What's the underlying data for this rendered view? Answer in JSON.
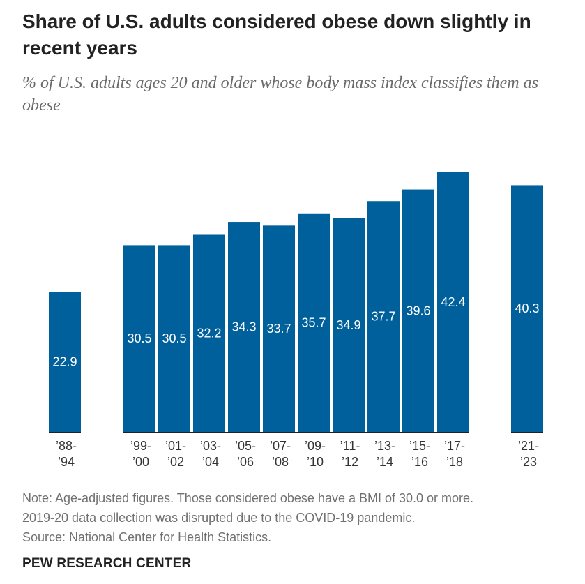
{
  "header": {
    "title": "Share of U.S. adults considered obese down slightly in recent years",
    "subtitle": "% of U.S. adults ages 20 and older whose body mass index classifies them as obese"
  },
  "colors": {
    "bar": "#00609b",
    "bar_label": "#ffffff",
    "axis": "#222222"
  },
  "chart_data": {
    "type": "bar",
    "categories": [
      [
        "’88-",
        "’94"
      ],
      [
        "’99-",
        "’00"
      ],
      [
        "’01-",
        "’02"
      ],
      [
        "’03-",
        "’04"
      ],
      [
        "’05-",
        "’06"
      ],
      [
        "’07-",
        "’08"
      ],
      [
        "’09-",
        "’10"
      ],
      [
        "’11-",
        "’12"
      ],
      [
        "’13-",
        "’14"
      ],
      [
        "’15-",
        "’16"
      ],
      [
        "’17-",
        "’18"
      ],
      [
        "’21-",
        "’23"
      ]
    ],
    "values": [
      22.9,
      30.5,
      30.5,
      32.2,
      34.3,
      33.7,
      35.7,
      34.9,
      37.7,
      39.6,
      42.4,
      40.3
    ],
    "data_labels": [
      "22.9",
      "30.5",
      "30.5",
      "32.2",
      "34.3",
      "33.7",
      "35.7",
      "34.9",
      "37.7",
      "39.6",
      "42.4",
      "40.3"
    ],
    "ylim": [
      0,
      42.4
    ],
    "grid": false,
    "legend": "none"
  },
  "footer": {
    "note_line1": "Note: Age-adjusted figures. Those considered obese have a BMI of 30.0 or more.",
    "note_line2": "2019-20 data collection was disrupted due to the COVID-19 pandemic.",
    "source": "Source: National Center for Health Statistics.",
    "brand": "PEW RESEARCH CENTER"
  }
}
